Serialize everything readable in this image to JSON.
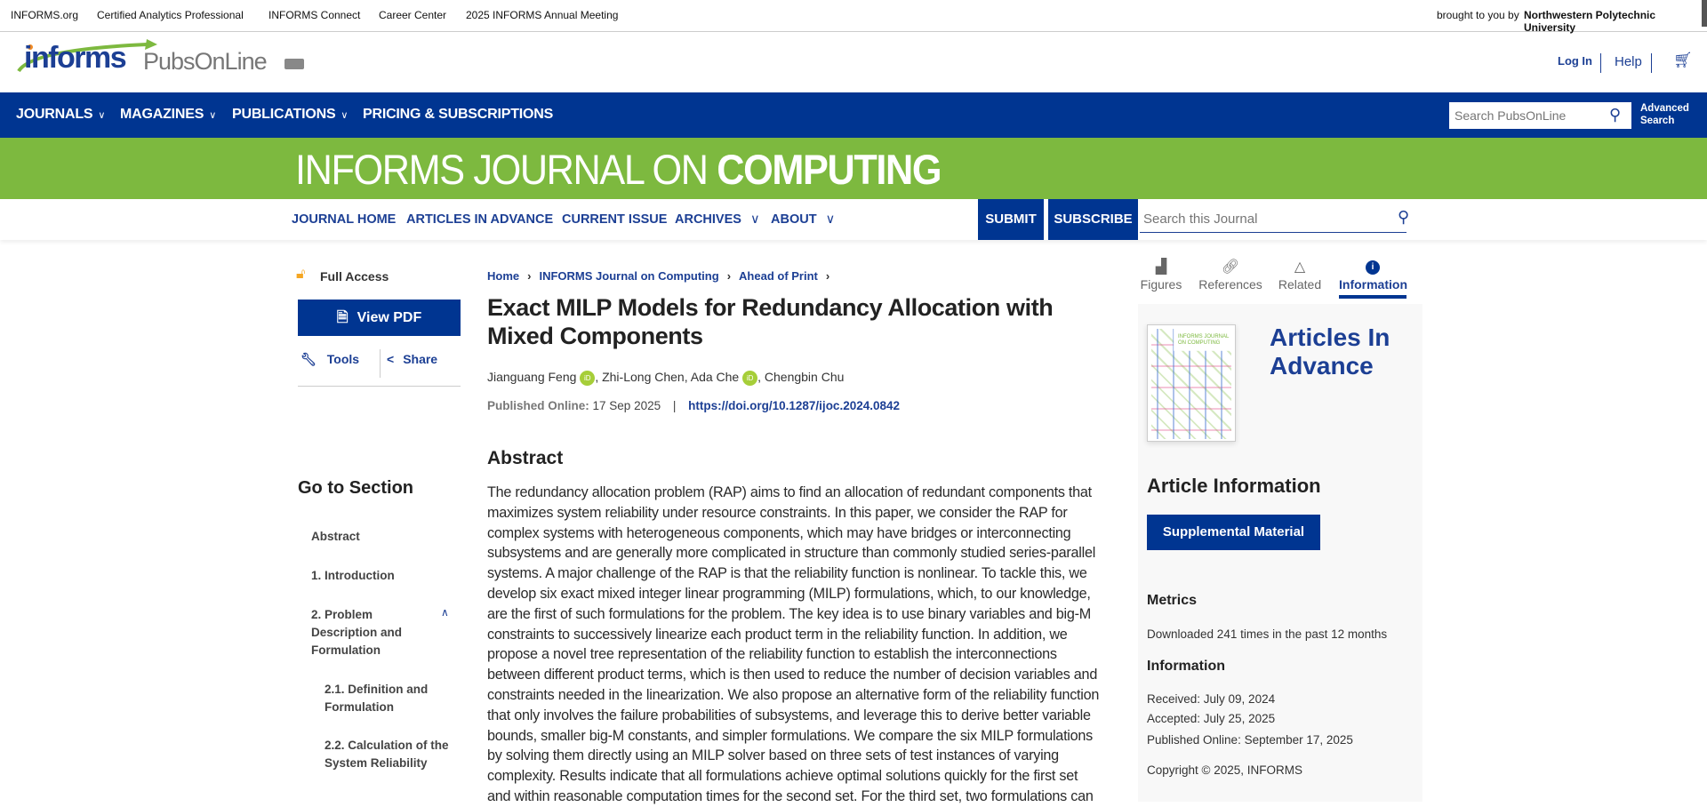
{
  "topbar": {
    "links": [
      "INFORMS.org",
      "Certified Analytics Professional",
      "INFORMS Connect",
      "Career Center",
      "2025 INFORMS Annual Meeting"
    ],
    "brought_by_label": "brought to you by",
    "institution": "Northwestern Polytechnic University"
  },
  "header": {
    "logo_text_informs": "informs",
    "logo_text_pubs": "PubsOnLine",
    "login": "Log In",
    "help": "Help",
    "cart_icon": "cart-icon"
  },
  "nav": {
    "items": [
      {
        "label": "JOURNALS",
        "dropdown": true
      },
      {
        "label": "MAGAZINES",
        "dropdown": true
      },
      {
        "label": "PUBLICATIONS",
        "dropdown": true
      },
      {
        "label": "PRICING & SUBSCRIPTIONS",
        "dropdown": false
      }
    ],
    "search_placeholder": "Search PubsOnLine",
    "advanced_search_line1": "Advanced",
    "advanced_search_line2": "Search"
  },
  "journal": {
    "title_light": "INFORMS JOURNAL ON ",
    "title_bold": "COMPUTING",
    "nav": [
      "JOURNAL HOME",
      "ARTICLES IN ADVANCE",
      "CURRENT ISSUE",
      "ARCHIVES",
      "ABOUT"
    ],
    "submit": "SUBMIT",
    "subscribe": "SUBSCRIBE",
    "search_placeholder": "Search this Journal"
  },
  "left": {
    "access": "Full Access",
    "view_pdf": "View PDF",
    "tools": "Tools",
    "share": "Share",
    "goto_heading": "Go to Section",
    "sections": [
      "Abstract",
      "1. Introduction",
      "2. Problem Description and Formulation",
      "2.1. Definition and Formulation",
      "2.2. Calculation of the System Reliability"
    ]
  },
  "article": {
    "breadcrumb": [
      "Home",
      "INFORMS Journal on Computing",
      "Ahead of Print"
    ],
    "title_line1": "Exact MILP Models for Redundancy Allocation with",
    "title_line2": "Mixed Components",
    "authors": [
      {
        "name": "Jianguang Feng",
        "orcid": true
      },
      {
        "name": "Zhi-Long Chen",
        "orcid": false
      },
      {
        "name": "Ada Che",
        "orcid": true
      },
      {
        "name": "Chengbin Chu",
        "orcid": false
      }
    ],
    "orcid_label": "iD",
    "published_label": "Published Online:",
    "published_date": "17 Sep 2025",
    "doi": "https://doi.org/10.1287/ijoc.2024.0842",
    "abstract_heading": "Abstract",
    "abstract_lines": [
      "The redundancy allocation problem (RAP) aims to find an allocation of redundant components that",
      "maximizes system reliability under resource constraints. In this paper, we consider the RAP for",
      "complex systems with heterogeneous components, which may have bridges or interconnecting",
      "subsystems and are generally more complicated in structure than commonly studied series-parallel",
      "systems. A major challenge of the RAP is that the reliability function is nonlinear. To tackle this, we",
      "develop six exact mixed integer linear programming (MILP) formulations, which, to our knowledge,",
      "are the first of such formulations for the problem. The key idea is to use binary variables and big-M",
      "constraints to successively linearize each product term in the reliability function. In addition, we",
      "propose a novel tree representation of the reliability function to establish the interconnections",
      "between different product terms, which is then used to reduce the number of decision variables and",
      "constraints needed in the linearization. We also propose an alternative form of the reliability function",
      "that only involves the failure probabilities of subsystems, and leverage this to derive better variable",
      "bounds, smaller big-M constants, and simpler formulations. We compare the six MILP formulations",
      "by solving them directly using an MILP solver based on three sets of test instances of varying",
      "complexity. Results indicate that all formulations achieve optimal solutions quickly for the first set",
      "and within reasonable computation times for the second set. For the third set, two formulations can"
    ]
  },
  "right": {
    "tabs": [
      {
        "label": "Figures",
        "icon": "image-icon",
        "active": false
      },
      {
        "label": "References",
        "icon": "link-icon",
        "active": false
      },
      {
        "label": "Related",
        "icon": "network-icon",
        "active": false
      },
      {
        "label": "Information",
        "icon": "info-icon",
        "active": true
      }
    ],
    "cover_title_1": "INFORMS JOURNAL",
    "cover_title_2": "ON COMPUTING",
    "articles_in_advance": "Articles In Advance",
    "article_info_heading": "Article Information",
    "supplemental": "Supplemental Material",
    "metrics_heading": "Metrics",
    "downloads": "Downloaded 241 times in the past 12 months",
    "information_heading": "Information",
    "received": "Received: July 09, 2024",
    "accepted": "Accepted: July 25, 2025",
    "published": "Published Online: September 17, 2025",
    "copyright": "Copyright © 2025, INFORMS"
  },
  "colors": {
    "brand_blue": "#003591",
    "journal_green": "#7db93f",
    "orcid_green": "#a6ce39",
    "access_orange": "#f5a623"
  }
}
